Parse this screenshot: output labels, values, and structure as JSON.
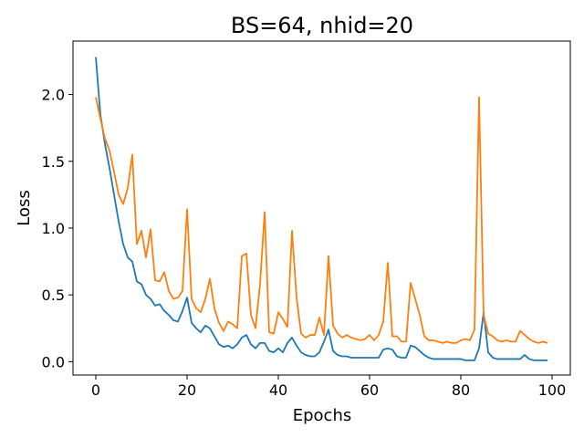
{
  "chart_data": {
    "type": "line",
    "title": "BS=64, nhid=20",
    "xlabel": "Epochs",
    "ylabel": "Loss",
    "xlim": [
      -5,
      104
    ],
    "ylim": [
      -0.1,
      2.4
    ],
    "xticks": [
      0,
      20,
      40,
      60,
      80,
      100
    ],
    "yticks": [
      0.0,
      0.5,
      1.0,
      1.5,
      2.0
    ],
    "xtick_labels": [
      "0",
      "20",
      "40",
      "60",
      "80",
      "100"
    ],
    "ytick_labels": [
      "0.0",
      "0.5",
      "1.0",
      "1.5",
      "2.0"
    ],
    "grid": false,
    "legend": false,
    "series": [
      {
        "color": "#1f77b4",
        "x": [
          0,
          1,
          2,
          3,
          4,
          5,
          6,
          7,
          8,
          9,
          10,
          11,
          12,
          13,
          14,
          15,
          16,
          17,
          18,
          19,
          20,
          21,
          22,
          23,
          24,
          25,
          26,
          27,
          28,
          29,
          30,
          31,
          32,
          33,
          34,
          35,
          36,
          37,
          38,
          39,
          40,
          41,
          42,
          43,
          44,
          45,
          46,
          47,
          48,
          49,
          50,
          51,
          52,
          53,
          54,
          55,
          56,
          57,
          58,
          59,
          60,
          61,
          62,
          63,
          64,
          65,
          66,
          67,
          68,
          69,
          70,
          71,
          72,
          73,
          74,
          75,
          76,
          77,
          78,
          79,
          80,
          81,
          82,
          83,
          84,
          85,
          86,
          87,
          88,
          89,
          90,
          91,
          92,
          93,
          94,
          95,
          96,
          97,
          98,
          99
        ],
        "y": [
          2.28,
          1.85,
          1.63,
          1.45,
          1.25,
          1.05,
          0.88,
          0.78,
          0.75,
          0.6,
          0.58,
          0.5,
          0.47,
          0.42,
          0.43,
          0.38,
          0.35,
          0.31,
          0.3,
          0.38,
          0.48,
          0.29,
          0.25,
          0.22,
          0.27,
          0.25,
          0.19,
          0.13,
          0.11,
          0.12,
          0.1,
          0.13,
          0.18,
          0.2,
          0.13,
          0.1,
          0.14,
          0.14,
          0.08,
          0.07,
          0.1,
          0.07,
          0.14,
          0.18,
          0.12,
          0.07,
          0.05,
          0.04,
          0.04,
          0.07,
          0.15,
          0.24,
          0.08,
          0.05,
          0.04,
          0.04,
          0.03,
          0.03,
          0.03,
          0.03,
          0.03,
          0.03,
          0.03,
          0.09,
          0.1,
          0.09,
          0.04,
          0.03,
          0.03,
          0.12,
          0.11,
          0.08,
          0.05,
          0.03,
          0.02,
          0.02,
          0.02,
          0.02,
          0.02,
          0.02,
          0.02,
          0.01,
          0.01,
          0.01,
          0.1,
          0.37,
          0.07,
          0.03,
          0.02,
          0.02,
          0.02,
          0.02,
          0.02,
          0.02,
          0.05,
          0.02,
          0.01,
          0.01,
          0.01,
          0.01
        ]
      },
      {
        "color": "#ff7f0e",
        "x": [
          0,
          1,
          2,
          3,
          4,
          5,
          6,
          7,
          8,
          9,
          10,
          11,
          12,
          13,
          14,
          15,
          16,
          17,
          18,
          19,
          20,
          21,
          22,
          23,
          24,
          25,
          26,
          27,
          28,
          29,
          30,
          31,
          32,
          33,
          34,
          35,
          36,
          37,
          38,
          39,
          40,
          41,
          42,
          43,
          44,
          45,
          46,
          47,
          48,
          49,
          50,
          51,
          52,
          53,
          54,
          55,
          56,
          57,
          58,
          59,
          60,
          61,
          62,
          63,
          64,
          65,
          66,
          67,
          68,
          69,
          70,
          71,
          72,
          73,
          74,
          75,
          76,
          77,
          78,
          79,
          80,
          81,
          82,
          83,
          84,
          85,
          86,
          87,
          88,
          89,
          90,
          91,
          92,
          93,
          94,
          95,
          96,
          97,
          98,
          99
        ],
        "y": [
          1.98,
          1.82,
          1.67,
          1.58,
          1.42,
          1.25,
          1.18,
          1.3,
          1.55,
          0.88,
          0.98,
          0.78,
          0.99,
          0.61,
          0.6,
          0.67,
          0.53,
          0.47,
          0.48,
          0.53,
          1.14,
          0.47,
          0.4,
          0.37,
          0.47,
          0.62,
          0.4,
          0.29,
          0.23,
          0.3,
          0.28,
          0.25,
          0.79,
          0.81,
          0.35,
          0.25,
          0.58,
          1.12,
          0.22,
          0.21,
          0.37,
          0.32,
          0.26,
          0.98,
          0.48,
          0.21,
          0.18,
          0.2,
          0.2,
          0.33,
          0.2,
          0.79,
          0.27,
          0.21,
          0.18,
          0.2,
          0.18,
          0.17,
          0.16,
          0.17,
          0.2,
          0.16,
          0.2,
          0.3,
          0.74,
          0.19,
          0.19,
          0.15,
          0.15,
          0.59,
          0.47,
          0.35,
          0.19,
          0.16,
          0.16,
          0.15,
          0.14,
          0.15,
          0.14,
          0.14,
          0.16,
          0.17,
          0.16,
          0.24,
          1.98,
          0.35,
          0.21,
          0.19,
          0.16,
          0.15,
          0.16,
          0.15,
          0.15,
          0.23,
          0.2,
          0.17,
          0.15,
          0.14,
          0.15,
          0.14
        ]
      }
    ]
  }
}
